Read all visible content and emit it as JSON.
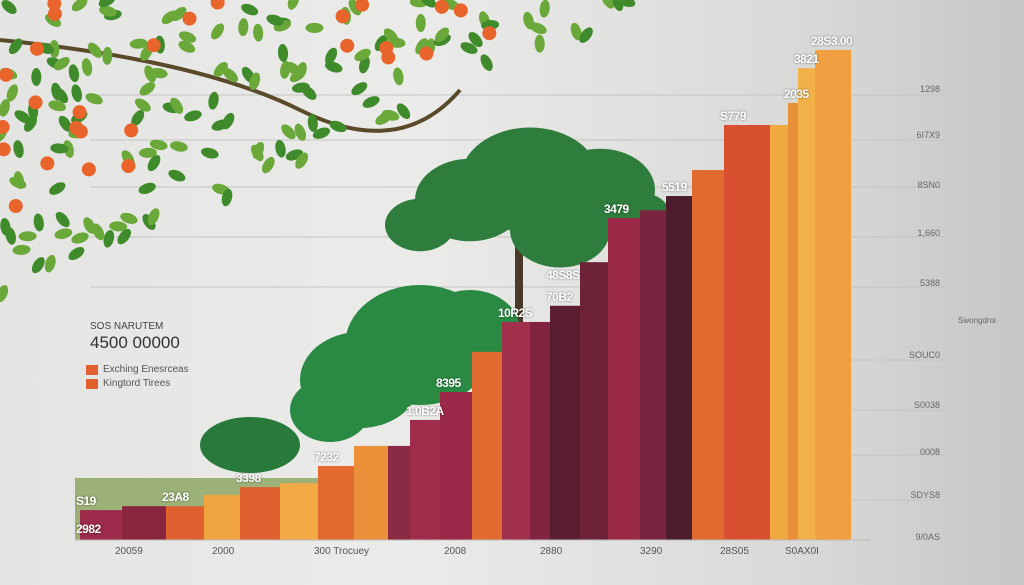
{
  "chart_data": {
    "type": "bar",
    "title": "",
    "ylim": [
      0,
      100
    ],
    "grid": true,
    "legend_placement": "left",
    "legend": {
      "title": "SOS NARUTEM",
      "value": "4500 00000",
      "entries": [
        "Exching Enesrceas",
        "Kingtord Tirees"
      ]
    },
    "y_tick_labels": [
      "1298",
      "6I7X9",
      "8SN0",
      "1,660",
      "5388",
      "SOUC0",
      "S0038",
      "0008",
      "SDYS8",
      "9/0AS"
    ],
    "x_tick_labels": [
      "20059",
      "2000",
      "300 Trocuey",
      "2008",
      "2880",
      "3290",
      "28S05",
      "S0AX0I"
    ],
    "side_label": "Swongdroi",
    "values": [
      6.1,
      6.9,
      6.9,
      9.2,
      10.8,
      11.6,
      15.1,
      19.2,
      19.2,
      24.5,
      30.2,
      38.4,
      44.5,
      44.5,
      47.8,
      56.7,
      65.7,
      67.3,
      70.2,
      75.5,
      84.7,
      84.7,
      89.2,
      96.3,
      100
    ],
    "colors": [
      "#9c2a4a",
      "#8a2540",
      "#e06030",
      "#f0a440",
      "#e06030",
      "#f2aa44",
      "#e26a30",
      "#e99038",
      "#8a2a44",
      "#a02c4c",
      "#9a2848",
      "#e06a30",
      "#a0304c",
      "#802440",
      "#5a1e30",
      "#6e2238",
      "#9a2a48",
      "#7a2540",
      "#4a1c2c",
      "#e06a30",
      "#d85030",
      "#f0a840",
      "#e89038",
      "#f2b048",
      "#f0a040"
    ],
    "data_labels": [
      {
        "bar": 0,
        "text": "S19"
      },
      {
        "bar": 0,
        "text": "2982",
        "inside": true
      },
      {
        "bar": 4,
        "text": "3398"
      },
      {
        "bar": 2,
        "text": "23A8"
      },
      {
        "bar": 6,
        "text": "7232"
      },
      {
        "bar": 9,
        "text": "1.0B2A"
      },
      {
        "bar": 10,
        "text": "8395"
      },
      {
        "bar": 12,
        "text": "10R2S"
      },
      {
        "bar": 14,
        "text": "70B2"
      },
      {
        "bar": 14,
        "text": "48S8S"
      },
      {
        "bar": 16,
        "text": "3479"
      },
      {
        "bar": 18,
        "text": "5519"
      },
      {
        "bar": 20,
        "text": "S779"
      },
      {
        "bar": 22,
        "text": "2035"
      },
      {
        "bar": 23,
        "text": "3821"
      },
      {
        "bar": 24,
        "text": "28S3.00"
      }
    ]
  },
  "scene": {
    "foliage_color": "#2f8a3e",
    "flower_color": "#e8642a"
  }
}
